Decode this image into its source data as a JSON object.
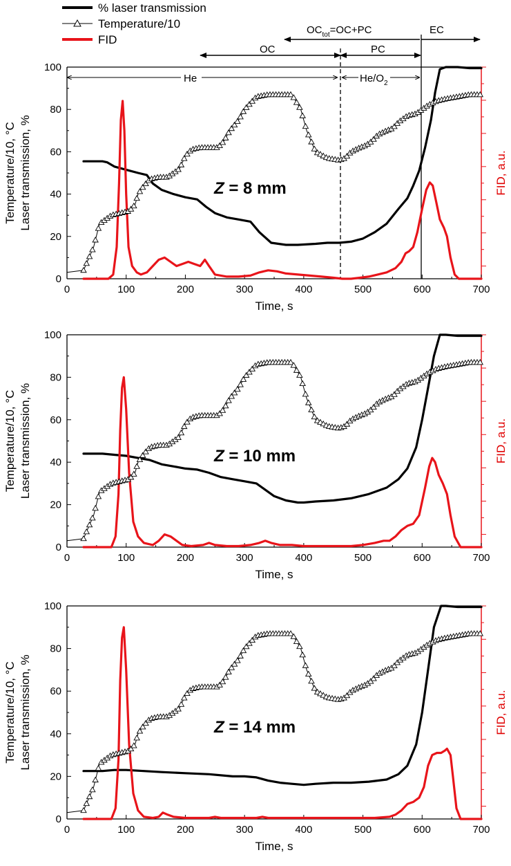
{
  "legend": {
    "laser": "% laser transmission",
    "temp": "Temperature/10",
    "fid": "FID"
  },
  "annotations": {
    "octot": "OC",
    "octot_sub": "tot",
    "octot_rest": "=OC+PC",
    "ec": "EC",
    "oc": "OC",
    "pc": "PC",
    "he": "He",
    "heo2": "He/O",
    "heo2_sub": "2"
  },
  "colors": {
    "laser": "#000000",
    "temp": "#000000",
    "fid": "#e8141a",
    "right_axis": "#e8141a"
  },
  "chart_data": [
    {
      "type": "line",
      "panel_label_prefix": "Z",
      "panel_label_rest": " = 8 mm",
      "xlabel": "Time, s",
      "ylabel_line1": "Temperature/10, °C",
      "ylabel_line2": "Laser transmission, %",
      "y2label": "FID, a.u.",
      "xlim": [
        0,
        700
      ],
      "ylim": [
        0,
        100
      ],
      "xticks": [
        0,
        100,
        200,
        300,
        400,
        500,
        600,
        700
      ],
      "yticks": [
        0,
        20,
        40,
        60,
        80,
        100
      ],
      "series": [
        {
          "name": "% laser transmission",
          "x": [
            28,
            60,
            68,
            80,
            100,
            120,
            135,
            145,
            160,
            180,
            200,
            220,
            235,
            250,
            270,
            290,
            310,
            325,
            345,
            370,
            390,
            420,
            440,
            460,
            480,
            500,
            520,
            540,
            560,
            575,
            585,
            595,
            605,
            615,
            622,
            630,
            640,
            660,
            680,
            700
          ],
          "values": [
            55.5,
            55.5,
            55,
            53,
            51.5,
            50,
            49,
            45,
            42,
            40,
            38.5,
            37.5,
            34,
            31,
            29,
            28,
            27,
            22,
            17,
            16,
            16,
            16.5,
            17,
            17,
            17.5,
            19,
            22,
            26,
            33,
            38,
            44,
            51,
            62,
            75,
            88,
            99,
            100,
            100,
            99.5,
            99.5
          ]
        },
        {
          "name": "FID",
          "x": [
            28,
            70,
            78,
            84,
            88,
            91,
            94,
            97,
            100,
            104,
            110,
            118,
            125,
            135,
            145,
            155,
            165,
            175,
            185,
            195,
            205,
            215,
            225,
            233,
            240,
            250,
            270,
            290,
            310,
            325,
            340,
            355,
            370,
            390,
            410,
            430,
            450,
            465,
            480,
            495,
            510,
            525,
            540,
            555,
            565,
            572,
            578,
            585,
            592,
            600,
            607,
            613,
            618,
            624,
            630,
            637,
            642,
            648,
            655,
            662,
            680,
            700
          ],
          "values": [
            0,
            0,
            2,
            15,
            45,
            75,
            84,
            70,
            40,
            15,
            6,
            3,
            2,
            3,
            6,
            9,
            10,
            8,
            6,
            7,
            8,
            7,
            6,
            9,
            6,
            2,
            1,
            1,
            1.5,
            3,
            4,
            3.5,
            2.5,
            2,
            1.5,
            1,
            0.5,
            0,
            0,
            0.5,
            1,
            2,
            3,
            5,
            8,
            12,
            13,
            15,
            22,
            33,
            42,
            45.5,
            44,
            36,
            28,
            24,
            20,
            10,
            2,
            0,
            0,
            0
          ]
        },
        {
          "name": "Temperature/10",
          "x": [
            0,
            28,
            45,
            55,
            65,
            75,
            90,
            105,
            115,
            120,
            130,
            140,
            155,
            170,
            190,
            200,
            210,
            225,
            240,
            255,
            265,
            275,
            290,
            300,
            320,
            340,
            360,
            380,
            395,
            405,
            420,
            440,
            460,
            470,
            480,
            495,
            505,
            515,
            525,
            540,
            550,
            560,
            575,
            590,
            600,
            610,
            625,
            640,
            660,
            680,
            700
          ],
          "values": [
            3,
            4,
            15,
            26,
            28,
            30,
            31,
            32,
            35,
            40,
            44,
            47,
            48,
            48,
            52,
            58,
            61,
            62,
            62,
            62,
            65,
            70,
            75,
            80,
            86,
            87,
            87,
            87,
            80,
            70,
            60,
            57,
            56,
            57,
            60,
            62,
            63,
            65,
            68,
            70,
            71,
            74,
            77,
            78,
            80,
            82,
            84,
            85,
            86,
            87,
            87
          ]
        }
      ]
    },
    {
      "type": "line",
      "panel_label_prefix": "Z",
      "panel_label_rest": " = 10 mm",
      "xlabel": "Time, s",
      "ylabel_line1": "Temperature/10, °C",
      "ylabel_line2": "Laser transmission, %",
      "y2label": "FID, a.u.",
      "xlim": [
        0,
        700
      ],
      "ylim": [
        0,
        100
      ],
      "xticks": [
        0,
        100,
        200,
        300,
        400,
        500,
        600,
        700
      ],
      "yticks": [
        0,
        20,
        40,
        60,
        80,
        100
      ],
      "series": [
        {
          "name": "% laser transmission",
          "x": [
            28,
            50,
            60,
            80,
            100,
            120,
            140,
            160,
            180,
            200,
            220,
            240,
            260,
            280,
            300,
            320,
            335,
            350,
            370,
            390,
            400,
            420,
            450,
            480,
            510,
            540,
            560,
            575,
            590,
            600,
            610,
            620,
            630,
            640,
            660,
            680,
            700
          ],
          "values": [
            44,
            44,
            44,
            43.5,
            43,
            42,
            41,
            39,
            38,
            37,
            36.5,
            35,
            33,
            32,
            31,
            30,
            27,
            24,
            22,
            21,
            21,
            21.5,
            22,
            23,
            25,
            28,
            32,
            37,
            47,
            60,
            75,
            90,
            100,
            100,
            99.5,
            99.5,
            99.5
          ]
        },
        {
          "name": "FID",
          "x": [
            28,
            75,
            82,
            87,
            90,
            93,
            96,
            100,
            105,
            112,
            120,
            130,
            145,
            155,
            165,
            175,
            185,
            195,
            210,
            230,
            240,
            250,
            270,
            290,
            310,
            325,
            335,
            345,
            360,
            380,
            400,
            420,
            440,
            460,
            480,
            500,
            520,
            535,
            545,
            555,
            565,
            575,
            585,
            595,
            605,
            612,
            617,
            622,
            628,
            635,
            642,
            648,
            655,
            665,
            680,
            700
          ],
          "values": [
            0,
            0,
            5,
            25,
            55,
            75,
            80,
            65,
            35,
            12,
            5,
            2,
            1,
            3,
            6,
            5,
            3,
            1,
            0.5,
            1,
            2,
            1,
            0.5,
            0.5,
            1,
            2,
            3,
            2,
            1,
            1,
            0.5,
            0.5,
            0.5,
            0.5,
            0.5,
            1,
            2,
            3,
            3,
            5,
            8,
            10,
            11,
            15,
            28,
            38,
            42,
            40,
            34,
            30,
            25,
            15,
            5,
            0,
            0,
            0
          ]
        },
        {
          "name": "Temperature/10",
          "x": [
            0,
            28,
            45,
            55,
            65,
            75,
            90,
            105,
            115,
            120,
            130,
            140,
            155,
            170,
            190,
            200,
            210,
            225,
            240,
            255,
            265,
            275,
            290,
            300,
            320,
            340,
            360,
            380,
            395,
            405,
            420,
            440,
            460,
            470,
            480,
            495,
            505,
            515,
            525,
            540,
            550,
            560,
            575,
            590,
            600,
            610,
            625,
            640,
            660,
            680,
            700
          ],
          "values": [
            3,
            4,
            15,
            26,
            28,
            30,
            31,
            32,
            35,
            40,
            44,
            47,
            48,
            48,
            52,
            58,
            61,
            62,
            62,
            62,
            65,
            70,
            75,
            80,
            86,
            87,
            87,
            87,
            80,
            70,
            60,
            57,
            56,
            57,
            60,
            62,
            63,
            65,
            68,
            70,
            71,
            74,
            77,
            78,
            80,
            82,
            84,
            85,
            86,
            87,
            87
          ]
        }
      ]
    },
    {
      "type": "line",
      "panel_label_prefix": "Z",
      "panel_label_rest": " = 14 mm",
      "xlabel": "Time, s",
      "ylabel_line1": "Temperature/10, °C",
      "ylabel_line2": "Laser transmission, %",
      "y2label": "FID, a.u.",
      "xlim": [
        0,
        700
      ],
      "ylim": [
        0,
        100
      ],
      "xticks": [
        0,
        100,
        200,
        300,
        400,
        500,
        600,
        700
      ],
      "yticks": [
        0,
        20,
        40,
        60,
        80,
        100
      ],
      "series": [
        {
          "name": "% laser transmission",
          "x": [
            28,
            60,
            80,
            100,
            130,
            160,
            200,
            240,
            280,
            300,
            320,
            340,
            360,
            380,
            400,
            420,
            450,
            480,
            510,
            540,
            560,
            575,
            590,
            600,
            610,
            620,
            632,
            640,
            660,
            680,
            700
          ],
          "values": [
            22.5,
            22.5,
            23,
            23,
            22.5,
            22,
            21.5,
            21,
            20,
            20,
            19.5,
            18,
            17,
            16.5,
            16,
            16.5,
            17,
            17,
            17.5,
            18.5,
            21,
            25,
            35,
            50,
            70,
            90,
            100,
            100,
            99.5,
            99.5,
            99.5
          ]
        },
        {
          "name": "FID",
          "x": [
            28,
            75,
            82,
            87,
            90,
            93,
            96,
            100,
            105,
            112,
            120,
            130,
            145,
            155,
            162,
            170,
            180,
            200,
            240,
            250,
            260,
            290,
            320,
            330,
            340,
            360,
            400,
            440,
            480,
            520,
            545,
            555,
            565,
            575,
            585,
            595,
            603,
            610,
            617,
            625,
            632,
            638,
            642,
            648,
            652,
            658,
            665,
            680,
            700
          ],
          "values": [
            0,
            0,
            5,
            28,
            65,
            85,
            90,
            70,
            35,
            12,
            4,
            1,
            0.5,
            1,
            3,
            2,
            1,
            0.5,
            0.5,
            1,
            0.5,
            0.5,
            0.5,
            1,
            0.5,
            0.5,
            0.5,
            0.5,
            0.5,
            0.5,
            1,
            2,
            4,
            7,
            8,
            10,
            15,
            25,
            30,
            31,
            31,
            32,
            33,
            30,
            20,
            5,
            0,
            0,
            0
          ]
        },
        {
          "name": "Temperature/10",
          "x": [
            0,
            28,
            45,
            55,
            65,
            75,
            90,
            105,
            115,
            120,
            130,
            140,
            155,
            170,
            190,
            200,
            210,
            225,
            240,
            255,
            265,
            275,
            290,
            300,
            320,
            340,
            360,
            380,
            395,
            405,
            420,
            440,
            460,
            470,
            480,
            495,
            505,
            515,
            525,
            540,
            550,
            560,
            575,
            590,
            600,
            610,
            625,
            640,
            660,
            680,
            700
          ],
          "values": [
            3,
            4,
            15,
            26,
            28,
            30,
            31,
            32,
            35,
            40,
            44,
            47,
            48,
            48,
            52,
            58,
            61,
            62,
            62,
            62,
            65,
            70,
            75,
            80,
            86,
            87,
            87,
            87,
            80,
            70,
            60,
            57,
            56,
            57,
            60,
            62,
            63,
            65,
            68,
            70,
            71,
            74,
            77,
            78,
            80,
            82,
            84,
            85,
            86,
            87,
            87
          ]
        }
      ]
    }
  ]
}
